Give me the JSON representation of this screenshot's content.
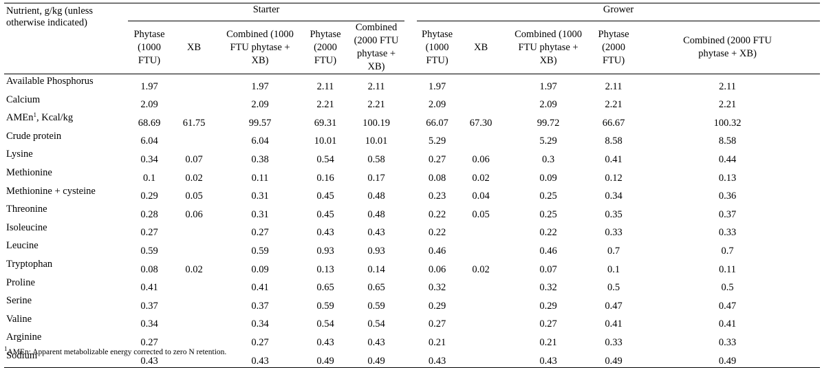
{
  "table": {
    "corner_header": "Nutrient, g/kg (unless otherwise indicated)",
    "groups": [
      {
        "label": "Starter",
        "columns": [
          "Phytase (1000 FTU)",
          "XB",
          "Combined (1000 FTU phytase + XB)",
          "Phytase (2000 FTU)",
          "Combined (2000 FTU phytase + XB)"
        ]
      },
      {
        "label": "Grower",
        "columns": [
          "Phytase (1000 FTU)",
          "XB",
          "Combined (1000 FTU phytase + XB)",
          "Phytase (2000 FTU)",
          "Combined (2000 FTU phytase + XB)"
        ]
      }
    ],
    "rows": [
      {
        "label": "Available Phosphorus",
        "values": [
          "1.97",
          "",
          "1.97",
          "2.11",
          "2.11",
          "1.97",
          "",
          "1.97",
          "2.11",
          "2.11"
        ]
      },
      {
        "label": "Calcium",
        "values": [
          "2.09",
          "",
          "2.09",
          "2.21",
          "2.21",
          "2.09",
          "",
          "2.09",
          "2.21",
          "2.21"
        ]
      },
      {
        "label": "AMEn",
        "label_sup": "1",
        "label_suffix": ", Kcal/kg",
        "values": [
          "68.69",
          "61.75",
          "99.57",
          "69.31",
          "100.19",
          "66.07",
          "67.30",
          "99.72",
          "66.67",
          "100.32"
        ]
      },
      {
        "label": "Crude protein",
        "values": [
          "6.04",
          "",
          "6.04",
          "10.01",
          "10.01",
          "5.29",
          "",
          "5.29",
          "8.58",
          "8.58"
        ]
      },
      {
        "label": "Lysine",
        "values": [
          "0.34",
          "0.07",
          "0.38",
          "0.54",
          "0.58",
          "0.27",
          "0.06",
          "0.3",
          "0.41",
          "0.44"
        ]
      },
      {
        "label": "Methionine",
        "values": [
          "0.1",
          "0.02",
          "0.11",
          "0.16",
          "0.17",
          "0.08",
          "0.02",
          "0.09",
          "0.12",
          "0.13"
        ]
      },
      {
        "label": "Methionine + cysteine",
        "values": [
          "0.29",
          "0.05",
          "0.31",
          "0.45",
          "0.48",
          "0.23",
          "0.04",
          "0.25",
          "0.34",
          "0.36"
        ]
      },
      {
        "label": "Threonine",
        "values": [
          "0.28",
          "0.06",
          "0.31",
          "0.45",
          "0.48",
          "0.22",
          "0.05",
          "0.25",
          "0.35",
          "0.37"
        ]
      },
      {
        "label": "Isoleucine",
        "values": [
          "0.27",
          "",
          "0.27",
          "0.43",
          "0.43",
          "0.22",
          "",
          "0.22",
          "0.33",
          "0.33"
        ]
      },
      {
        "label": "Leucine",
        "values": [
          "0.59",
          "",
          "0.59",
          "0.93",
          "0.93",
          "0.46",
          "",
          "0.46",
          "0.7",
          "0.7"
        ]
      },
      {
        "label": "Tryptophan",
        "values": [
          "0.08",
          "0.02",
          "0.09",
          "0.13",
          "0.14",
          "0.06",
          "0.02",
          "0.07",
          "0.1",
          "0.11"
        ]
      },
      {
        "label": "Proline",
        "values": [
          "0.41",
          "",
          "0.41",
          "0.65",
          "0.65",
          "0.32",
          "",
          "0.32",
          "0.5",
          "0.5"
        ]
      },
      {
        "label": "Serine",
        "values": [
          "0.37",
          "",
          "0.37",
          "0.59",
          "0.59",
          "0.29",
          "",
          "0.29",
          "0.47",
          "0.47"
        ]
      },
      {
        "label": "Valine",
        "values": [
          "0.34",
          "",
          "0.34",
          "0.54",
          "0.54",
          "0.27",
          "",
          "0.27",
          "0.41",
          "0.41"
        ]
      },
      {
        "label": "Arginine",
        "values": [
          "0.27",
          "",
          "0.27",
          "0.43",
          "0.43",
          "0.21",
          "",
          "0.21",
          "0.33",
          "0.33"
        ]
      },
      {
        "label": "Sodium",
        "values": [
          "0.43",
          "",
          "0.43",
          "0.49",
          "0.49",
          "0.43",
          "",
          "0.43",
          "0.49",
          "0.49"
        ]
      }
    ]
  },
  "footnote": {
    "marker": "1",
    "text": "AMEn: Apparent metabolizable energy corrected to zero N retention."
  }
}
